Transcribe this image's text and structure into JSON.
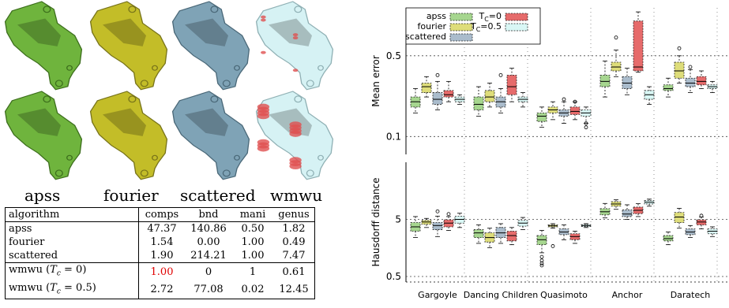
{
  "renders": {
    "labels": [
      "apss",
      "fourier",
      "scattered",
      "wmwu"
    ],
    "colors": [
      "#6fb43d",
      "#c3bd28",
      "#7fa3b6",
      "#d6f2f4"
    ],
    "edge_colors": [
      "#3c6e1c",
      "#77731a",
      "#4a6878",
      "#8fb0b4"
    ],
    "error_color": "#e05050"
  },
  "table": {
    "headers": [
      "algorithm",
      "comps",
      "bnd",
      "mani",
      "genus"
    ],
    "rows": [
      {
        "name": "apss",
        "cells": [
          "47.37",
          "140.86",
          "0.50",
          "1.82"
        ],
        "bold": [
          false,
          false,
          false,
          false
        ],
        "red": [
          false,
          false,
          false,
          false
        ],
        "group_start": false
      },
      {
        "name": "fourier",
        "cells": [
          "1.54",
          "0.00",
          "1.00",
          "0.49"
        ],
        "bold": [
          false,
          true,
          true,
          true
        ],
        "red": [
          false,
          false,
          false,
          false
        ],
        "group_start": false
      },
      {
        "name": "scattered",
        "cells": [
          "1.90",
          "214.21",
          "1.00",
          "7.47"
        ],
        "bold": [
          false,
          false,
          true,
          false
        ],
        "red": [
          false,
          false,
          false,
          false
        ],
        "group_start": false
      },
      {
        "name": "wmwu (",
        "math": "T",
        "sub": "c",
        "rest": " = 0)",
        "cells": [
          "1.00",
          "0",
          "1",
          "0.61"
        ],
        "bold": [
          false,
          true,
          true,
          false
        ],
        "red": [
          true,
          false,
          false,
          false
        ],
        "group_start": true
      },
      {
        "name": "wmwu (",
        "math": "T",
        "sub": "c",
        "rest": " = 0.5)",
        "cells": [
          "2.72",
          "77.08",
          "0.02",
          "12.45"
        ],
        "bold": [
          false,
          false,
          false,
          false
        ],
        "red": [
          false,
          false,
          false,
          false
        ],
        "group_start": false
      }
    ]
  },
  "chart_data": [
    {
      "type": "box",
      "ylabel": "Mean error",
      "yscale": "log",
      "ylim": [
        0.07,
        1.3
      ],
      "ytick_labels": [
        "0.1",
        "0.5"
      ],
      "ytick_values": [
        0.1,
        0.5
      ],
      "grid": "dotted",
      "legend_placement": "top-left",
      "categories": [
        "Gargoyle",
        "Dancing Children",
        "Quasimoto",
        "Anchor",
        "Daratech"
      ],
      "series": [
        {
          "name": "apss",
          "color": "#a6d68f",
          "boxes": [
            {
              "min": 0.16,
              "q1": 0.18,
              "median": 0.2,
              "q3": 0.22,
              "max": 0.26
            },
            {
              "min": 0.15,
              "q1": 0.17,
              "median": 0.19,
              "q3": 0.22,
              "max": 0.27
            },
            {
              "min": 0.12,
              "q1": 0.135,
              "median": 0.15,
              "q3": 0.16,
              "max": 0.18
            },
            {
              "min": 0.22,
              "q1": 0.27,
              "median": 0.3,
              "q3": 0.34,
              "max": 0.45
            },
            {
              "min": 0.22,
              "q1": 0.25,
              "median": 0.26,
              "q3": 0.28,
              "max": 0.32
            }
          ],
          "outliers": [
            [],
            [],
            [],
            [],
            []
          ]
        },
        {
          "name": "fourier",
          "color": "#dedd7a",
          "boxes": [
            {
              "min": 0.22,
              "q1": 0.24,
              "median": 0.27,
              "q3": 0.29,
              "max": 0.33
            },
            {
              "min": 0.18,
              "q1": 0.2,
              "median": 0.22,
              "q3": 0.25,
              "max": 0.29
            },
            {
              "min": 0.14,
              "q1": 0.16,
              "median": 0.17,
              "q3": 0.18,
              "max": 0.2
            },
            {
              "min": 0.33,
              "q1": 0.37,
              "median": 0.4,
              "q3": 0.44,
              "max": 0.56
            },
            {
              "min": 0.29,
              "q1": 0.32,
              "median": 0.37,
              "q3": 0.44,
              "max": 0.5
            }
          ],
          "outliers": [
            [],
            [],
            [],
            [
              0.72
            ],
            [
              0.58
            ]
          ]
        },
        {
          "name": "scattered",
          "color": "#aabccc",
          "boxes": [
            {
              "min": 0.17,
              "q1": 0.19,
              "median": 0.21,
              "q3": 0.24,
              "max": 0.3
            },
            {
              "min": 0.16,
              "q1": 0.18,
              "median": 0.2,
              "q3": 0.22,
              "max": 0.26
            },
            {
              "min": 0.13,
              "q1": 0.15,
              "median": 0.16,
              "q3": 0.17,
              "max": 0.2
            },
            {
              "min": 0.23,
              "q1": 0.26,
              "median": 0.29,
              "q3": 0.33,
              "max": 0.39
            },
            {
              "min": 0.24,
              "q1": 0.27,
              "median": 0.29,
              "q3": 0.32,
              "max": 0.38
            }
          ],
          "outliers": [
            [
              0.34
            ],
            [
              0.34
            ],
            [
              0.21
            ],
            [],
            [
              0.4
            ]
          ]
        },
        {
          "name": "T_c=0",
          "color": "#e66b6b",
          "boxes": [
            {
              "min": 0.2,
              "q1": 0.22,
              "median": 0.23,
              "q3": 0.25,
              "max": 0.3
            },
            {
              "min": 0.2,
              "q1": 0.23,
              "median": 0.27,
              "q3": 0.34,
              "max": 0.39
            },
            {
              "min": 0.14,
              "q1": 0.155,
              "median": 0.165,
              "q3": 0.18,
              "max": 0.2
            },
            {
              "min": 0.36,
              "q1": 0.37,
              "median": 0.4,
              "q3": 1.0,
              "max": 1.2
            },
            {
              "min": 0.26,
              "q1": 0.28,
              "median": 0.3,
              "q3": 0.33,
              "max": 0.37
            }
          ],
          "outliers": [
            [],
            [],
            [
              0.2
            ],
            [],
            []
          ]
        },
        {
          "name": "T_c=0.5",
          "color": "#d9f7f5",
          "boxes": [
            {
              "min": 0.19,
              "q1": 0.2,
              "median": 0.21,
              "q3": 0.22,
              "max": 0.23
            },
            {
              "min": 0.18,
              "q1": 0.2,
              "median": 0.21,
              "q3": 0.22,
              "max": 0.24
            },
            {
              "min": 0.13,
              "q1": 0.15,
              "median": 0.16,
              "q3": 0.17,
              "max": 0.18
            },
            {
              "min": 0.19,
              "q1": 0.21,
              "median": 0.23,
              "q3": 0.25,
              "max": 0.27
            },
            {
              "min": 0.24,
              "q1": 0.26,
              "median": 0.27,
              "q3": 0.28,
              "max": 0.3
            }
          ],
          "outliers": [
            [],
            [],
            [
              0.13,
              0.12
            ],
            [],
            []
          ]
        }
      ]
    },
    {
      "type": "box",
      "ylabel": "Hausdorff distance",
      "yscale": "log",
      "ylim": [
        0.4,
        50
      ],
      "ytick_labels": [
        "0.5",
        "5"
      ],
      "ytick_values": [
        0.5,
        5
      ],
      "grid": "dotted",
      "categories": [
        "Gargoyle",
        "Dancing Children",
        "Quasimoto",
        "Anchor",
        "Daratech"
      ],
      "series": [
        {
          "name": "apss",
          "color": "#a6d68f",
          "boxes": [
            {
              "min": 2.4,
              "q1": 3.1,
              "median": 3.7,
              "q3": 4.4,
              "max": 5.6
            },
            {
              "min": 1.9,
              "q1": 2.4,
              "median": 2.9,
              "q3": 3.3,
              "max": 4.0
            },
            {
              "min": 1.3,
              "q1": 1.8,
              "median": 2.2,
              "q3": 2.6,
              "max": 3.2
            },
            {
              "min": 5.3,
              "q1": 6.0,
              "median": 6.8,
              "q3": 7.7,
              "max": 9.5
            },
            {
              "min": 1.8,
              "q1": 2.1,
              "median": 2.3,
              "q3": 2.6,
              "max": 3.0
            }
          ],
          "outliers": [
            [],
            [],
            [
              1.1,
              0.95,
              0.85,
              0.78
            ],
            [],
            []
          ]
        },
        {
          "name": "fourier",
          "color": "#dedd7a",
          "boxes": [
            {
              "min": 3.6,
              "q1": 4.1,
              "median": 4.5,
              "q3": 4.8,
              "max": 5.2
            },
            {
              "min": 1.6,
              "q1": 2.0,
              "median": 2.4,
              "q3": 2.9,
              "max": 3.5
            },
            {
              "min": 3.5,
              "q1": 3.7,
              "median": 3.85,
              "q3": 4.0,
              "max": 4.2
            },
            {
              "min": 7.5,
              "q1": 8.5,
              "median": 9.3,
              "q3": 10.2,
              "max": 11.0
            },
            {
              "min": 3.5,
              "q1": 4.4,
              "median": 5.5,
              "q3": 6.6,
              "max": 7.8
            }
          ],
          "outliers": [
            [],
            [],
            [
              1.7
            ],
            [],
            []
          ]
        },
        {
          "name": "scattered",
          "color": "#aabccc",
          "boxes": [
            {
              "min": 2.5,
              "q1": 3.3,
              "median": 3.9,
              "q3": 4.4,
              "max": 5.7
            },
            {
              "min": 1.9,
              "q1": 2.4,
              "median": 2.9,
              "q3": 3.6,
              "max": 4.2
            },
            {
              "min": 2.2,
              "q1": 2.7,
              "median": 3.0,
              "q3": 3.4,
              "max": 4.0
            },
            {
              "min": 5.0,
              "q1": 5.6,
              "median": 6.2,
              "q3": 7.3,
              "max": 9.0
            },
            {
              "min": 2.4,
              "q1": 2.7,
              "median": 3.0,
              "q3": 3.4,
              "max": 3.9
            }
          ],
          "outliers": [
            [
              6.9
            ],
            [],
            [],
            [],
            []
          ]
        },
        {
          "name": "T_c=0",
          "color": "#e66b6b",
          "boxes": [
            {
              "min": 3.2,
              "q1": 3.7,
              "median": 4.3,
              "q3": 4.9,
              "max": 5.6
            },
            {
              "min": 1.8,
              "q1": 2.1,
              "median": 2.6,
              "q3": 3.1,
              "max": 3.6
            },
            {
              "min": 1.9,
              "q1": 2.2,
              "median": 2.5,
              "q3": 2.8,
              "max": 3.1
            },
            {
              "min": 5.6,
              "q1": 6.3,
              "median": 7.2,
              "q3": 8.2,
              "max": 9.4
            },
            {
              "min": 3.4,
              "q1": 4.0,
              "median": 4.5,
              "q3": 4.9,
              "max": 5.5
            }
          ],
          "outliers": [
            [
              6.2
            ],
            [],
            [],
            [],
            [
              5.8
            ]
          ]
        },
        {
          "name": "T_c=0.5",
          "color": "#d9f7f5",
          "boxes": [
            {
              "min": 3.6,
              "q1": 4.3,
              "median": 5.0,
              "q3": 5.7,
              "max": 6.4
            },
            {
              "min": 3.3,
              "q1": 3.8,
              "median": 4.3,
              "q3": 4.8,
              "max": 5.4
            },
            {
              "min": 3.6,
              "q1": 3.75,
              "median": 3.9,
              "q3": 4.05,
              "max": 4.2
            },
            {
              "min": 8.5,
              "q1": 9.3,
              "median": 10.0,
              "q3": 10.7,
              "max": 11.3
            },
            {
              "min": 2.5,
              "q1": 2.8,
              "median": 3.1,
              "q3": 3.4,
              "max": 3.7
            }
          ],
          "outliers": [
            [],
            [],
            [],
            [],
            []
          ]
        }
      ]
    }
  ],
  "legend": {
    "entries": [
      {
        "label": "apss",
        "color": "#a6d68f"
      },
      {
        "label": "fourier",
        "color": "#dedd7a"
      },
      {
        "label": "scattered",
        "color": "#aabccc"
      },
      {
        "label": "T",
        "sub": "C",
        "rest": "=0",
        "color": "#e66b6b"
      },
      {
        "label": "T",
        "sub": "C",
        "rest": "=0.5",
        "color": "#d9f7f5"
      }
    ]
  }
}
